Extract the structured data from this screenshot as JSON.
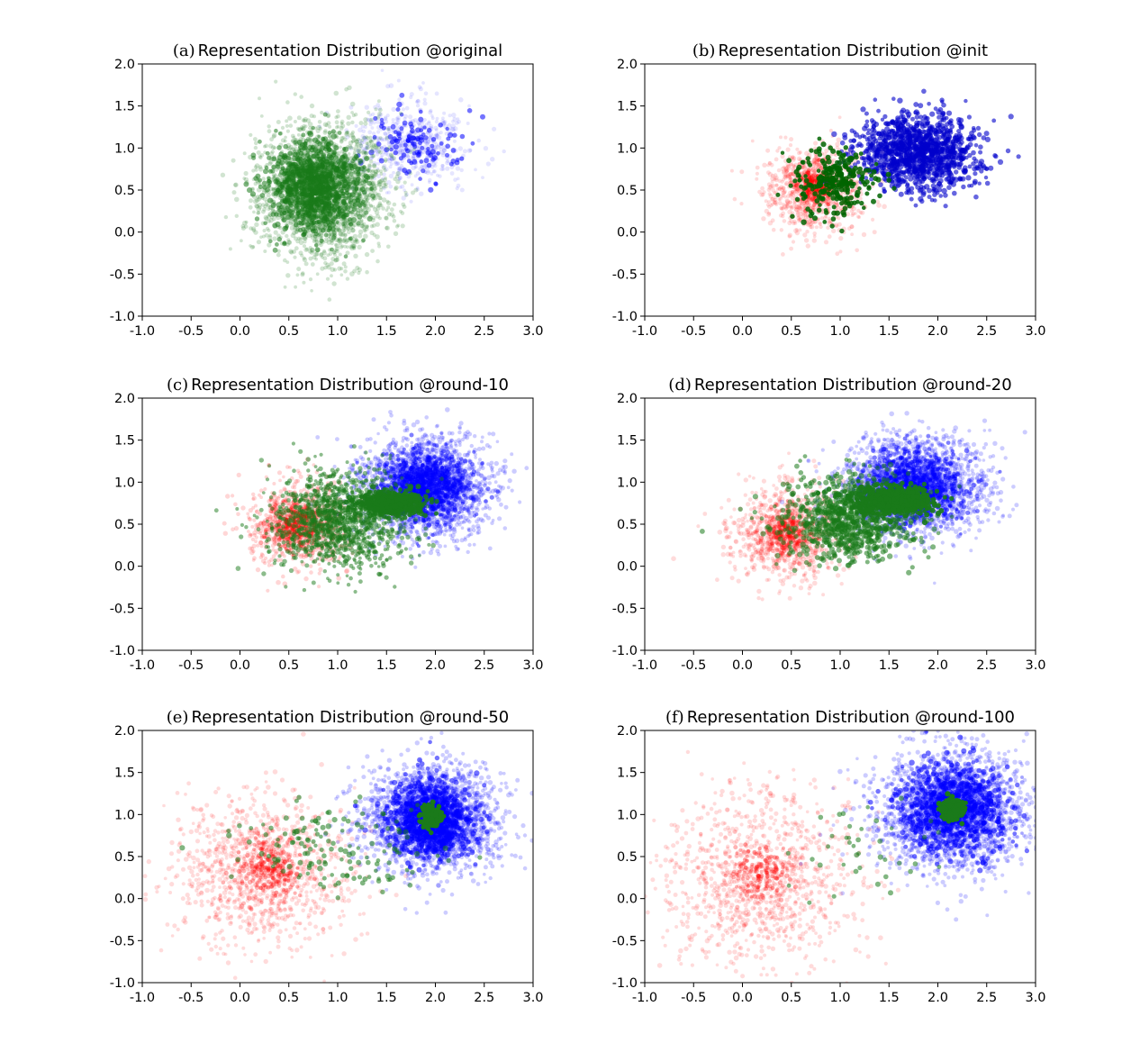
{
  "chart_data": [
    {
      "type": "scatter",
      "panel_label": "(a)",
      "title": "Representation Distribution @original",
      "xlim": [
        -1.0,
        3.0
      ],
      "ylim": [
        -1.0,
        2.0
      ],
      "xticks": [
        "-1.0",
        "-0.5",
        "0.0",
        "0.5",
        "1.0",
        "1.5",
        "2.0",
        "2.5",
        "3.0"
      ],
      "yticks": [
        "2.0",
        "1.5",
        "1.0",
        "0.5",
        "0.0",
        "-0.5",
        "-1.0"
      ],
      "grid": false,
      "series": [
        {
          "color": "#0000ff",
          "clusters": [
            {
              "cx": 1.75,
              "cy": 1.05,
              "sx": 0.3,
              "sy": 0.25,
              "n": 500,
              "alpha": 0.1
            },
            {
              "cx": 1.8,
              "cy": 1.05,
              "sx": 0.22,
              "sy": 0.2,
              "n": 110,
              "alpha": 0.55
            }
          ]
        },
        {
          "color": "#1a7a1a",
          "clusters": [
            {
              "cx": 0.85,
              "cy": 0.5,
              "sx": 0.32,
              "sy": 0.38,
              "n": 2400,
              "alpha": 0.2
            },
            {
              "cx": 0.75,
              "cy": 0.55,
              "sx": 0.22,
              "sy": 0.26,
              "n": 900,
              "alpha": 0.55
            }
          ]
        }
      ]
    },
    {
      "type": "scatter",
      "panel_label": "(b)",
      "title": "Representation Distribution @init",
      "xlim": [
        -1.0,
        3.0
      ],
      "ylim": [
        -1.0,
        2.0
      ],
      "xticks": [
        "-1.0",
        "-0.5",
        "0.0",
        "0.5",
        "1.0",
        "1.5",
        "2.0",
        "2.5",
        "3.0"
      ],
      "yticks": [
        "2.0",
        "1.5",
        "1.0",
        "0.5",
        "0.0",
        "-0.5",
        "-1.0"
      ],
      "grid": false,
      "series": [
        {
          "color": "#ff0000",
          "clusters": [
            {
              "cx": 0.75,
              "cy": 0.5,
              "sx": 0.25,
              "sy": 0.25,
              "n": 900,
              "alpha": 0.14
            },
            {
              "cx": 0.75,
              "cy": 0.55,
              "sx": 0.1,
              "sy": 0.1,
              "n": 160,
              "alpha": 0.35
            }
          ]
        },
        {
          "color": "#0000cc",
          "clusters": [
            {
              "cx": 1.8,
              "cy": 0.95,
              "sx": 0.3,
              "sy": 0.22,
              "n": 1200,
              "alpha": 0.6
            }
          ]
        },
        {
          "color": "#006400",
          "clusters": [
            {
              "cx": 0.95,
              "cy": 0.6,
              "sx": 0.2,
              "sy": 0.2,
              "n": 260,
              "alpha": 0.85
            }
          ]
        }
      ]
    },
    {
      "type": "scatter",
      "panel_label": "(c)",
      "title": "Representation Distribution @round-10",
      "xlim": [
        -1.0,
        3.0
      ],
      "ylim": [
        -1.0,
        2.0
      ],
      "xticks": [
        "-1.0",
        "-0.5",
        "0.0",
        "0.5",
        "1.0",
        "1.5",
        "2.0",
        "2.5",
        "3.0"
      ],
      "yticks": [
        "2.0",
        "1.5",
        "1.0",
        "0.5",
        "0.0",
        "-0.5",
        "-1.0"
      ],
      "grid": false,
      "series": [
        {
          "color": "#ff0000",
          "clusters": [
            {
              "cx": 0.6,
              "cy": 0.5,
              "sx": 0.25,
              "sy": 0.25,
              "n": 800,
              "alpha": 0.16
            },
            {
              "cx": 0.55,
              "cy": 0.5,
              "sx": 0.12,
              "sy": 0.12,
              "n": 200,
              "alpha": 0.35
            }
          ]
        },
        {
          "color": "#0000ff",
          "clusters": [
            {
              "cx": 1.9,
              "cy": 0.95,
              "sx": 0.32,
              "sy": 0.28,
              "n": 2300,
              "alpha": 0.2
            },
            {
              "cx": 1.9,
              "cy": 0.95,
              "sx": 0.22,
              "sy": 0.2,
              "n": 700,
              "alpha": 0.5
            }
          ]
        },
        {
          "color": "#1a7a1a",
          "clusters": [
            {
              "cx": 1.0,
              "cy": 0.55,
              "sx": 0.35,
              "sy": 0.28,
              "n": 1200,
              "alpha": 0.5
            },
            {
              "cx": 1.55,
              "cy": 0.75,
              "sx": 0.18,
              "sy": 0.07,
              "n": 500,
              "alpha": 0.85
            }
          ]
        }
      ]
    },
    {
      "type": "scatter",
      "panel_label": "(d)",
      "title": "Representation Distribution @round-20",
      "xlim": [
        -1.0,
        3.0
      ],
      "ylim": [
        -1.0,
        2.0
      ],
      "xticks": [
        "-1.0",
        "-0.5",
        "0.0",
        "0.5",
        "1.0",
        "1.5",
        "2.0",
        "2.5",
        "3.0"
      ],
      "yticks": [
        "2.0",
        "1.5",
        "1.0",
        "0.5",
        "0.0",
        "-0.5",
        "-1.0"
      ],
      "grid": false,
      "series": [
        {
          "color": "#ff0000",
          "clusters": [
            {
              "cx": 0.45,
              "cy": 0.4,
              "sx": 0.28,
              "sy": 0.28,
              "n": 900,
              "alpha": 0.14
            },
            {
              "cx": 0.45,
              "cy": 0.4,
              "sx": 0.12,
              "sy": 0.12,
              "n": 200,
              "alpha": 0.3
            }
          ]
        },
        {
          "color": "#0000ff",
          "clusters": [
            {
              "cx": 1.75,
              "cy": 0.95,
              "sx": 0.35,
              "sy": 0.28,
              "n": 2300,
              "alpha": 0.2
            },
            {
              "cx": 1.75,
              "cy": 0.95,
              "sx": 0.24,
              "sy": 0.2,
              "n": 700,
              "alpha": 0.5
            }
          ]
        },
        {
          "color": "#1a7a1a",
          "clusters": [
            {
              "cx": 1.1,
              "cy": 0.55,
              "sx": 0.33,
              "sy": 0.25,
              "n": 900,
              "alpha": 0.55
            },
            {
              "cx": 1.55,
              "cy": 0.78,
              "sx": 0.2,
              "sy": 0.08,
              "n": 600,
              "alpha": 0.9
            }
          ]
        }
      ]
    },
    {
      "type": "scatter",
      "panel_label": "(e)",
      "title": "Representation Distribution @round-50",
      "xlim": [
        -1.0,
        3.0
      ],
      "ylim": [
        -1.0,
        2.0
      ],
      "xticks": [
        "-1.0",
        "-0.5",
        "0.0",
        "0.5",
        "1.0",
        "1.5",
        "2.0",
        "2.5",
        "3.0"
      ],
      "yticks": [
        "2.0",
        "1.5",
        "1.0",
        "0.5",
        "0.0",
        "-0.5",
        "-1.0"
      ],
      "grid": false,
      "series": [
        {
          "color": "#ff0000",
          "clusters": [
            {
              "cx": 0.25,
              "cy": 0.3,
              "sx": 0.45,
              "sy": 0.45,
              "n": 1100,
              "alpha": 0.14
            },
            {
              "cx": 0.3,
              "cy": 0.35,
              "sx": 0.15,
              "sy": 0.15,
              "n": 200,
              "alpha": 0.3
            }
          ]
        },
        {
          "color": "#0000ff",
          "clusters": [
            {
              "cx": 1.95,
              "cy": 0.95,
              "sx": 0.32,
              "sy": 0.3,
              "n": 2300,
              "alpha": 0.2
            },
            {
              "cx": 1.95,
              "cy": 0.95,
              "sx": 0.22,
              "sy": 0.22,
              "n": 800,
              "alpha": 0.55
            }
          ]
        },
        {
          "color": "#1a7a1a",
          "clusters": [
            {
              "cx": 0.9,
              "cy": 0.6,
              "sx": 0.45,
              "sy": 0.3,
              "n": 150,
              "alpha": 0.55
            },
            {
              "cx": 1.95,
              "cy": 0.97,
              "sx": 0.05,
              "sy": 0.07,
              "n": 200,
              "alpha": 1
            }
          ]
        }
      ]
    },
    {
      "type": "scatter",
      "panel_label": "(f)",
      "title": "Representation Distribution @round-100",
      "xlim": [
        -1.0,
        3.0
      ],
      "ylim": [
        -1.0,
        2.0
      ],
      "xticks": [
        "-1.0",
        "-0.5",
        "0.0",
        "0.5",
        "1.0",
        "1.5",
        "2.0",
        "2.5",
        "3.0"
      ],
      "yticks": [
        "2.0",
        "1.5",
        "1.0",
        "0.5",
        "0.0",
        "-0.5",
        "-1.0"
      ],
      "grid": false,
      "series": [
        {
          "color": "#ff0000",
          "clusters": [
            {
              "cx": 0.15,
              "cy": 0.25,
              "sx": 0.5,
              "sy": 0.5,
              "n": 1100,
              "alpha": 0.14
            },
            {
              "cx": 0.2,
              "cy": 0.3,
              "sx": 0.15,
              "sy": 0.15,
              "n": 150,
              "alpha": 0.3
            }
          ]
        },
        {
          "color": "#0000ff",
          "clusters": [
            {
              "cx": 2.15,
              "cy": 1.05,
              "sx": 0.38,
              "sy": 0.35,
              "n": 2300,
              "alpha": 0.2
            },
            {
              "cx": 2.15,
              "cy": 1.05,
              "sx": 0.25,
              "sy": 0.25,
              "n": 800,
              "alpha": 0.55
            }
          ]
        },
        {
          "color": "#1a7a1a",
          "clusters": [
            {
              "cx": 1.2,
              "cy": 0.65,
              "sx": 0.35,
              "sy": 0.3,
              "n": 40,
              "alpha": 0.55
            },
            {
              "cx": 2.15,
              "cy": 1.05,
              "sx": 0.05,
              "sy": 0.06,
              "n": 220,
              "alpha": 1
            }
          ]
        }
      ]
    }
  ]
}
